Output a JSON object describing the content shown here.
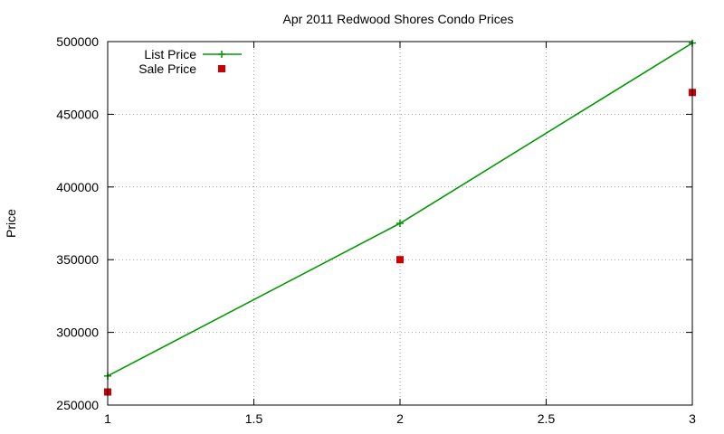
{
  "chart_data": {
    "type": "line",
    "title": "Apr 2011 Redwood Shores Condo Prices",
    "xlabel": "",
    "ylabel": "Price",
    "xlim": [
      1,
      3
    ],
    "ylim": [
      250000,
      500000
    ],
    "x_ticks": [
      1,
      1.5,
      2,
      2.5,
      3
    ],
    "x_tick_labels": [
      "1",
      "1.5",
      "2",
      "2.5",
      "3"
    ],
    "y_ticks": [
      250000,
      300000,
      350000,
      400000,
      450000,
      500000
    ],
    "y_tick_labels": [
      "250000",
      "300000",
      "350000",
      "400000",
      "450000",
      "500000"
    ],
    "grid": true,
    "legend_position": "top-left",
    "series": [
      {
        "name": "List Price",
        "style": "linespoints",
        "marker": "plus",
        "color": "#009900",
        "x": [
          1,
          2,
          3
        ],
        "y": [
          270000,
          375000,
          499000
        ]
      },
      {
        "name": "Sale Price",
        "style": "points",
        "marker": "square",
        "color": "#cc0000",
        "x": [
          1,
          2,
          3
        ],
        "y": [
          259000,
          350000,
          465000
        ]
      }
    ]
  }
}
